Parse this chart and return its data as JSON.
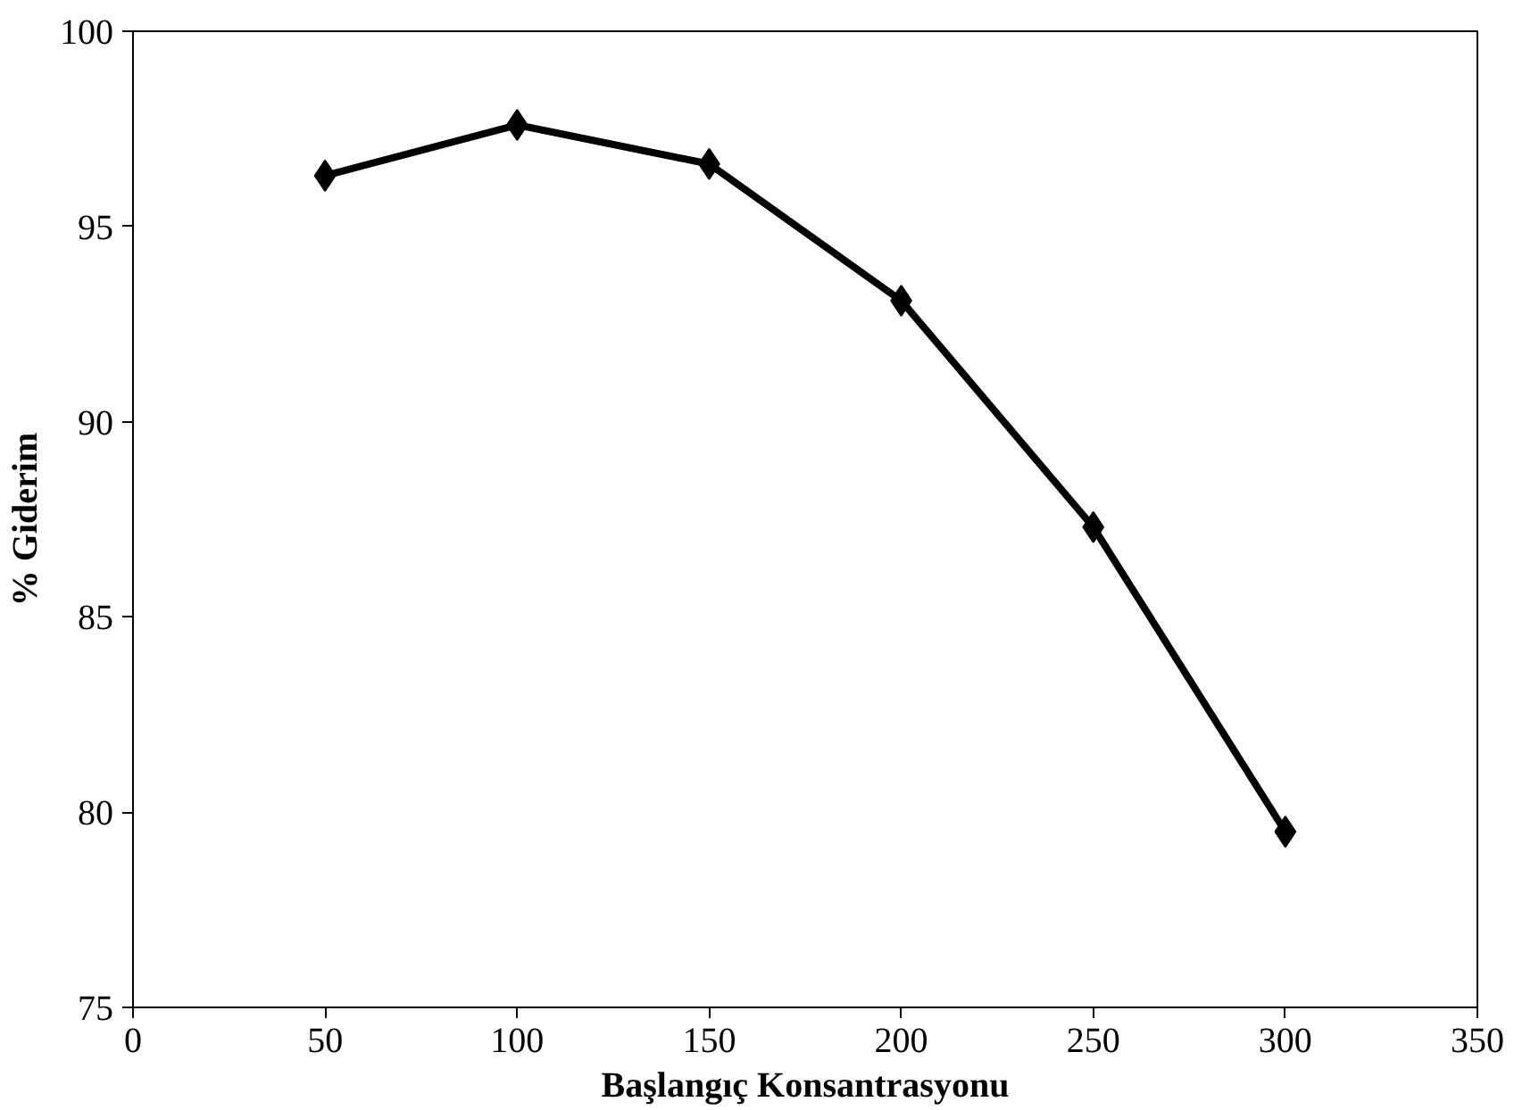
{
  "chart_data": {
    "type": "line",
    "xlabel": "Başlangıç Konsantrasyonu",
    "ylabel": "% Giderim",
    "x": [
      50,
      100,
      150,
      200,
      250,
      300
    ],
    "series": [
      {
        "color": "#000000",
        "values": [
          96.3,
          97.6,
          96.6,
          93.1,
          87.3,
          79.5
        ]
      }
    ],
    "xlim": [
      0,
      350
    ],
    "xticks": [
      0,
      50,
      100,
      150,
      200,
      250,
      300,
      350
    ],
    "ylim": [
      75,
      100
    ],
    "yticks": [
      75,
      80,
      85,
      90,
      95,
      100
    ],
    "grid": false,
    "marker": "diamond",
    "line_style": "solid"
  }
}
